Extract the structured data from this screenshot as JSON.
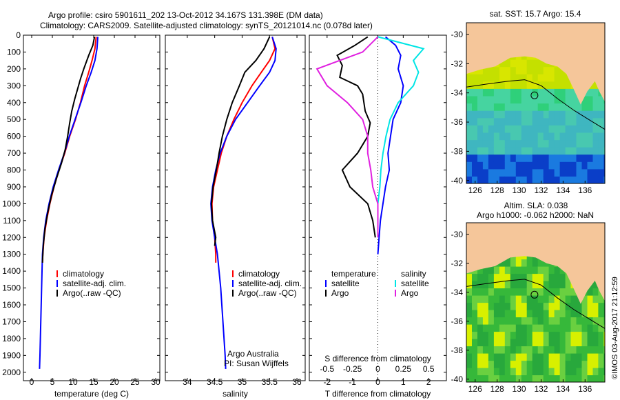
{
  "title_line1": "Argo profile: csiro 5901611_202 13-Oct-2012 34.167S 131.398E (DM data)",
  "title_line2": "Climatology: CARS2009. Satellite-adjusted climatology: synTS_20121014.nc (0.078d later)",
  "footer_stamp": "©IMOS 03-Aug-2017 21:12:59",
  "colors": {
    "climatology": "#ff0000",
    "satellite": "#0000ff",
    "argo": "#000000",
    "sal_satellite": "#00e5e5",
    "sal_argo": "#e020e0",
    "land": "#f5c69a"
  },
  "chart_data": [
    {
      "type": "line",
      "id": "temperature",
      "xlabel": "temperature (deg C)",
      "ylim": [
        2050,
        0
      ],
      "xlim": [
        -2,
        31
      ],
      "xticks": [
        0,
        5,
        10,
        15,
        20,
        25,
        30
      ],
      "yticks": [
        0,
        100,
        200,
        300,
        400,
        500,
        600,
        700,
        800,
        900,
        1000,
        1100,
        1200,
        1300,
        1400,
        1500,
        1600,
        1700,
        1800,
        1900,
        2000
      ],
      "legend": [
        "climatology",
        "satellite-adj. clim.",
        "Argo(..raw -QC)"
      ],
      "series": [
        {
          "name": "climatology",
          "color": "#ff0000",
          "points": [
            [
              15.6,
              10
            ],
            [
              15.3,
              80
            ],
            [
              14.6,
              150
            ],
            [
              13.8,
              220
            ],
            [
              12.8,
              300
            ],
            [
              11.8,
              400
            ],
            [
              10.6,
              500
            ],
            [
              9.2,
              600
            ],
            [
              8.0,
              700
            ],
            [
              6.6,
              800
            ],
            [
              5.4,
              900
            ],
            [
              4.4,
              1000
            ],
            [
              3.6,
              1100
            ],
            [
              3.0,
              1200
            ],
            [
              2.7,
              1300
            ],
            [
              2.6,
              1350
            ]
          ]
        },
        {
          "name": "satellite-adj. clim.",
          "color": "#0000ff",
          "points": [
            [
              16.0,
              10
            ],
            [
              15.8,
              80
            ],
            [
              15.3,
              150
            ],
            [
              14.4,
              220
            ],
            [
              13.2,
              300
            ],
            [
              11.9,
              400
            ],
            [
              10.5,
              500
            ],
            [
              9.1,
              600
            ],
            [
              7.9,
              700
            ],
            [
              6.5,
              800
            ],
            [
              5.2,
              900
            ],
            [
              4.2,
              1000
            ],
            [
              3.4,
              1100
            ],
            [
              2.9,
              1200
            ],
            [
              2.6,
              1300
            ],
            [
              2.5,
              1400
            ],
            [
              2.4,
              1500
            ],
            [
              2.3,
              1600
            ],
            [
              2.2,
              1700
            ],
            [
              2.1,
              1800
            ],
            [
              2.0,
              1900
            ],
            [
              1.9,
              1980
            ]
          ]
        },
        {
          "name": "Argo(..raw -QC)",
          "color": "#000000",
          "points": [
            [
              15.2,
              10
            ],
            [
              14.8,
              60
            ],
            [
              13.8,
              120
            ],
            [
              12.6,
              200
            ],
            [
              11.8,
              260
            ],
            [
              11.1,
              320
            ],
            [
              10.4,
              380
            ],
            [
              9.7,
              450
            ],
            [
              9.2,
              520
            ],
            [
              8.7,
              600
            ],
            [
              8.1,
              680
            ],
            [
              7.2,
              760
            ],
            [
              6.0,
              850
            ],
            [
              4.8,
              950
            ],
            [
              3.9,
              1050
            ],
            [
              3.2,
              1150
            ],
            [
              2.8,
              1250
            ],
            [
              2.6,
              1350
            ]
          ]
        }
      ]
    },
    {
      "type": "line",
      "id": "salinity",
      "xlabel": "salinity",
      "ylim": [
        2050,
        0
      ],
      "xlim": [
        33.6,
        36.15
      ],
      "xticks": [
        34,
        34.5,
        35,
        35.5,
        36
      ],
      "legend": [
        "climatology",
        "satellite-adj. clim.",
        "Argo(..raw -QC)"
      ],
      "annotation": [
        "Argo Australia",
        "PI: Susan Wijffels"
      ],
      "series": [
        {
          "name": "climatology",
          "color": "#ff0000",
          "points": [
            [
              35.55,
              10
            ],
            [
              35.6,
              80
            ],
            [
              35.5,
              150
            ],
            [
              35.35,
              220
            ],
            [
              35.18,
              300
            ],
            [
              35.0,
              400
            ],
            [
              34.85,
              500
            ],
            [
              34.72,
              600
            ],
            [
              34.62,
              700
            ],
            [
              34.55,
              800
            ],
            [
              34.48,
              900
            ],
            [
              34.45,
              1000
            ],
            [
              34.46,
              1100
            ],
            [
              34.5,
              1200
            ],
            [
              34.52,
              1300
            ],
            [
              34.52,
              1350
            ]
          ]
        },
        {
          "name": "satellite-adj. clim.",
          "color": "#0000ff",
          "points": [
            [
              35.55,
              10
            ],
            [
              35.62,
              80
            ],
            [
              35.6,
              150
            ],
            [
              35.5,
              220
            ],
            [
              35.32,
              300
            ],
            [
              35.1,
              400
            ],
            [
              34.88,
              500
            ],
            [
              34.72,
              600
            ],
            [
              34.6,
              700
            ],
            [
              34.52,
              800
            ],
            [
              34.46,
              900
            ],
            [
              34.43,
              1000
            ],
            [
              34.45,
              1100
            ],
            [
              34.5,
              1200
            ],
            [
              34.55,
              1300
            ],
            [
              34.58,
              1400
            ],
            [
              34.61,
              1500
            ],
            [
              34.63,
              1600
            ],
            [
              34.65,
              1700
            ],
            [
              34.67,
              1800
            ],
            [
              34.69,
              1900
            ],
            [
              34.7,
              1980
            ]
          ]
        },
        {
          "name": "Argo(..raw -QC)",
          "color": "#000000",
          "points": [
            [
              35.5,
              10
            ],
            [
              35.4,
              80
            ],
            [
              35.25,
              150
            ],
            [
              35.05,
              220
            ],
            [
              34.95,
              300
            ],
            [
              34.82,
              400
            ],
            [
              34.72,
              500
            ],
            [
              34.64,
              600
            ],
            [
              34.58,
              700
            ],
            [
              34.53,
              800
            ],
            [
              34.47,
              900
            ],
            [
              34.44,
              1000
            ],
            [
              34.46,
              1100
            ],
            [
              34.52,
              1200
            ],
            [
              34.5,
              1250
            ]
          ]
        }
      ]
    },
    {
      "type": "line",
      "id": "difference",
      "xlabel_bottom": "T difference from climatology",
      "xlabel_top": "S difference from climatology",
      "ylim": [
        2050,
        0
      ],
      "t_xlim": [
        -2.7,
        2.7
      ],
      "t_xticks": [
        -2,
        -1,
        0,
        1,
        2
      ],
      "s_xticks": [
        -0.5,
        -0.25,
        0,
        0.25,
        0.5
      ],
      "s_scale": 4,
      "legend_headings": [
        "temperature",
        "salinity"
      ],
      "legend_items": [
        "satellite",
        "Argo",
        "satellite",
        "Argo"
      ],
      "series": [
        {
          "name": "satellite",
          "group": "temperature",
          "color": "#0000ff",
          "points": [
            [
              0.3,
              10
            ],
            [
              0.7,
              60
            ],
            [
              0.9,
              120
            ],
            [
              0.8,
              200
            ],
            [
              1.0,
              300
            ],
            [
              0.9,
              400
            ],
            [
              0.6,
              500
            ],
            [
              0.5,
              600
            ],
            [
              0.4,
              700
            ],
            [
              0.45,
              800
            ],
            [
              0.3,
              900
            ],
            [
              0.2,
              1000
            ],
            [
              0.1,
              1100
            ],
            [
              0.05,
              1200
            ],
            [
              0.0,
              1300
            ]
          ]
        },
        {
          "name": "Argo",
          "group": "temperature",
          "color": "#000000",
          "points": [
            [
              -0.4,
              10
            ],
            [
              -0.9,
              60
            ],
            [
              -1.6,
              120
            ],
            [
              -1.4,
              180
            ],
            [
              -1.5,
              250
            ],
            [
              -0.8,
              300
            ],
            [
              -0.6,
              350
            ],
            [
              -0.5,
              450
            ],
            [
              -0.3,
              520
            ],
            [
              -0.4,
              600
            ],
            [
              -0.8,
              700
            ],
            [
              -1.4,
              800
            ],
            [
              -1.1,
              900
            ],
            [
              -0.4,
              1000
            ],
            [
              -0.2,
              1100
            ],
            [
              -0.1,
              1200
            ]
          ]
        },
        {
          "name": "satellite",
          "group": "salinity",
          "color": "#00e5e5",
          "points": [
            [
              0.0,
              10
            ],
            [
              0.45,
              80
            ],
            [
              0.35,
              150
            ],
            [
              0.4,
              220
            ],
            [
              0.35,
              300
            ],
            [
              0.2,
              400
            ],
            [
              0.12,
              500
            ],
            [
              0.08,
              600
            ],
            [
              0.05,
              700
            ],
            [
              0.03,
              800
            ],
            [
              0.02,
              900
            ],
            [
              0.0,
              1000
            ],
            [
              0.0,
              1100
            ],
            [
              0.0,
              1200
            ]
          ]
        },
        {
          "name": "Argo",
          "group": "salinity",
          "color": "#e020e0",
          "points": [
            [
              0.0,
              10
            ],
            [
              -0.15,
              100
            ],
            [
              -0.6,
              200
            ],
            [
              -0.5,
              300
            ],
            [
              -0.3,
              400
            ],
            [
              -0.15,
              500
            ],
            [
              -0.1,
              600
            ],
            [
              -0.1,
              700
            ],
            [
              -0.07,
              800
            ],
            [
              -0.05,
              900
            ],
            [
              0.0,
              1000
            ],
            [
              0.0,
              1100
            ],
            [
              0.0,
              1200
            ]
          ]
        }
      ]
    },
    {
      "type": "heatmap",
      "id": "sst-map",
      "title": "sat. SST: 15.7  Argo: 15.4",
      "xlim": [
        125.2,
        137.8
      ],
      "ylim": [
        -40.2,
        -29.2
      ],
      "xticks": [
        126,
        128,
        130,
        132,
        134,
        136
      ],
      "yticks": [
        -30,
        -32,
        -34,
        -36,
        -38,
        -40
      ],
      "marker": [
        131.398,
        -34.167
      ]
    },
    {
      "type": "heatmap",
      "id": "sla-map",
      "title_line1": "Altim. SLA: 0.038",
      "title_line2": "Argo h1000: -0.062  h2000: NaN",
      "xlim": [
        125.2,
        137.8
      ],
      "ylim": [
        -40.2,
        -29.2
      ],
      "xticks": [
        126,
        128,
        130,
        132,
        134,
        136
      ],
      "yticks": [
        -30,
        -32,
        -34,
        -36,
        -38,
        -40
      ],
      "marker": [
        131.398,
        -34.167
      ]
    }
  ]
}
